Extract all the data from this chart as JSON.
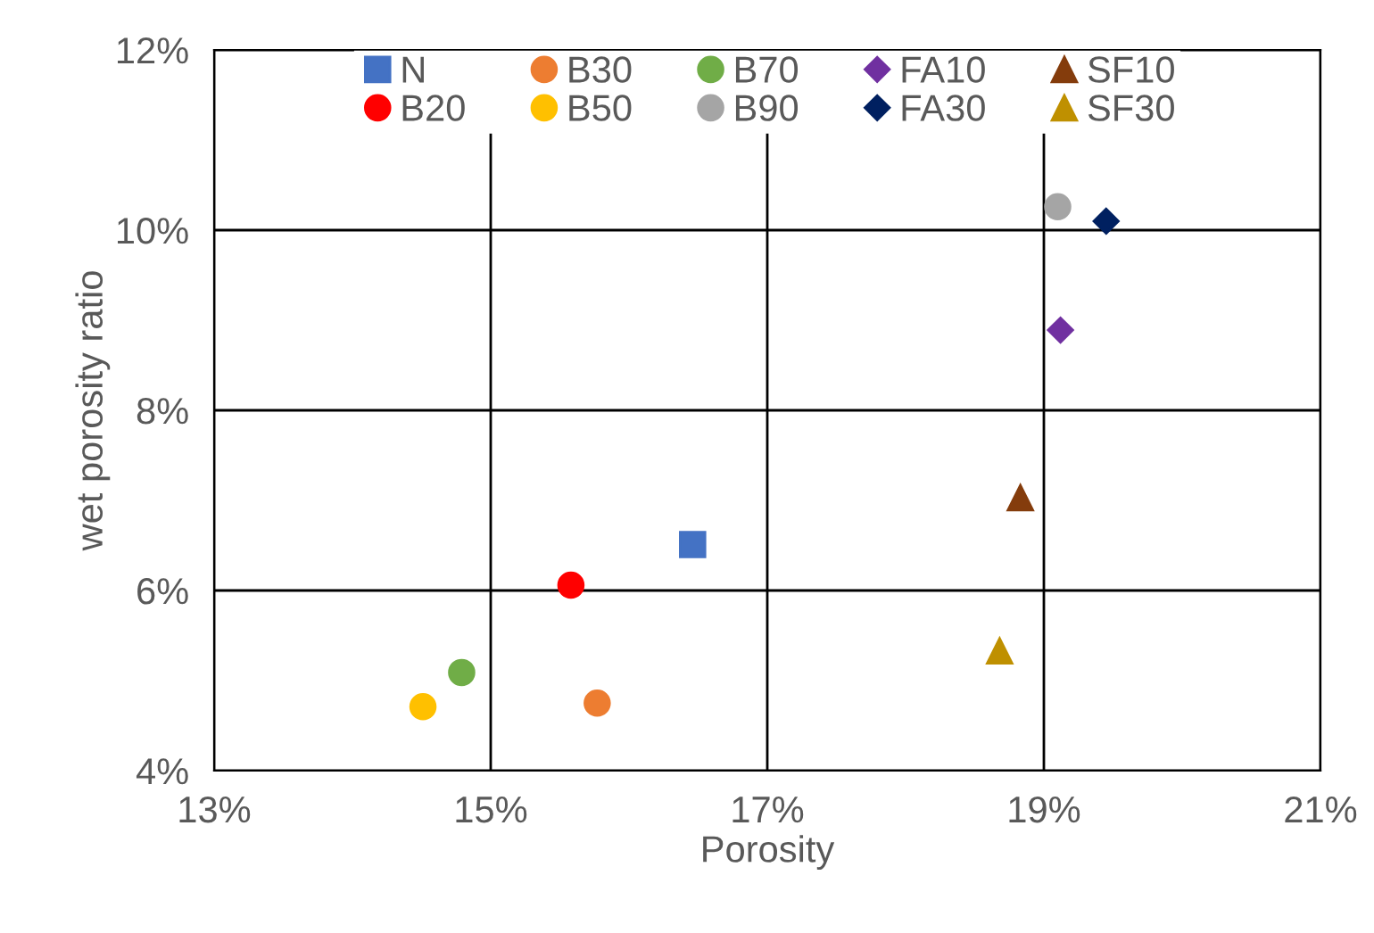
{
  "chart_data": {
    "type": "scatter",
    "xlabel": "Porosity",
    "ylabel": "wet porosity ratio",
    "xlim": [
      13,
      21
    ],
    "xticks": [
      {
        "value": 13,
        "label": "13%"
      },
      {
        "value": 15,
        "label": "15%"
      },
      {
        "value": 17,
        "label": "17%"
      },
      {
        "value": 19,
        "label": "19%"
      },
      {
        "value": 21,
        "label": "21%"
      }
    ],
    "ylim": [
      4,
      12
    ],
    "yticks": [
      {
        "value": 4,
        "label": "4%"
      },
      {
        "value": 6,
        "label": "6%"
      },
      {
        "value": 8,
        "label": "8%"
      },
      {
        "value": 10,
        "label": "10%"
      },
      {
        "value": 12,
        "label": "12%"
      }
    ],
    "grid": true,
    "legend": "top",
    "series": [
      {
        "name": "N",
        "color": "#4472c4",
        "marker": "square",
        "x": [
          16.46
        ],
        "values": [
          6.51
        ]
      },
      {
        "name": "B20",
        "color": "#ff0000",
        "marker": "circle",
        "x": [
          15.58
        ],
        "values": [
          6.06
        ]
      },
      {
        "name": "B30",
        "color": "#ed7d31",
        "marker": "circle",
        "x": [
          15.77
        ],
        "values": [
          4.75
        ]
      },
      {
        "name": "B50",
        "color": "#ffc000",
        "marker": "circle",
        "x": [
          14.51
        ],
        "values": [
          4.71
        ]
      },
      {
        "name": "B70",
        "color": "#70ad47",
        "marker": "circle",
        "x": [
          14.79
        ],
        "values": [
          5.09
        ]
      },
      {
        "name": "B90",
        "color": "#a5a5a5",
        "marker": "circle",
        "x": [
          19.1
        ],
        "values": [
          10.26
        ]
      },
      {
        "name": "FA10",
        "color": "#7030a0",
        "marker": "diamond",
        "x": [
          19.12
        ],
        "values": [
          8.89
        ]
      },
      {
        "name": "FA30",
        "color": "#002060",
        "marker": "diamond",
        "x": [
          19.45
        ],
        "values": [
          10.1
        ]
      },
      {
        "name": "SF10",
        "color": "#843c0c",
        "marker": "triangle",
        "x": [
          18.83
        ],
        "values": [
          7.03
        ]
      },
      {
        "name": "SF30",
        "color": "#bf9000",
        "marker": "triangle",
        "x": [
          18.68
        ],
        "values": [
          5.33
        ]
      }
    ]
  }
}
